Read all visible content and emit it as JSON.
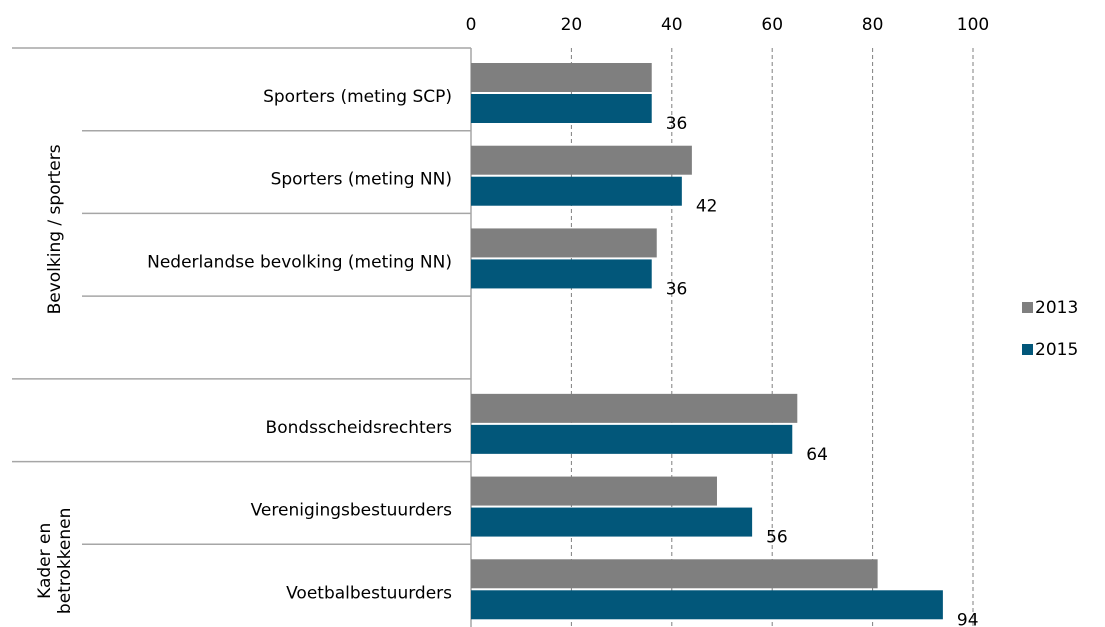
{
  "chart_data": {
    "type": "bar",
    "orientation": "horizontal",
    "categories": [
      "Sporters (meting SCP)",
      "Sporters (meting NN)",
      "Nederlandse bevolking (meting NN)",
      null,
      "Bondsscheidsrechters",
      "Verenigingsbestuurders",
      "Voetbalbestuurders"
    ],
    "group_labels": [
      [
        "Bevolking / sporters"
      ],
      [
        "Kader en",
        "betrokkenen"
      ]
    ],
    "series": [
      {
        "name": "2013",
        "color": "#7f7f7f",
        "values": [
          36,
          44,
          37,
          null,
          65,
          49,
          81
        ]
      },
      {
        "name": "2015",
        "color": "#02577a",
        "values": [
          36,
          42,
          36,
          null,
          64,
          56,
          94
        ]
      }
    ],
    "xlim": [
      0,
      100
    ],
    "xticks": [
      0,
      20,
      40,
      60,
      80,
      100
    ],
    "grid": true,
    "legend": "right"
  }
}
